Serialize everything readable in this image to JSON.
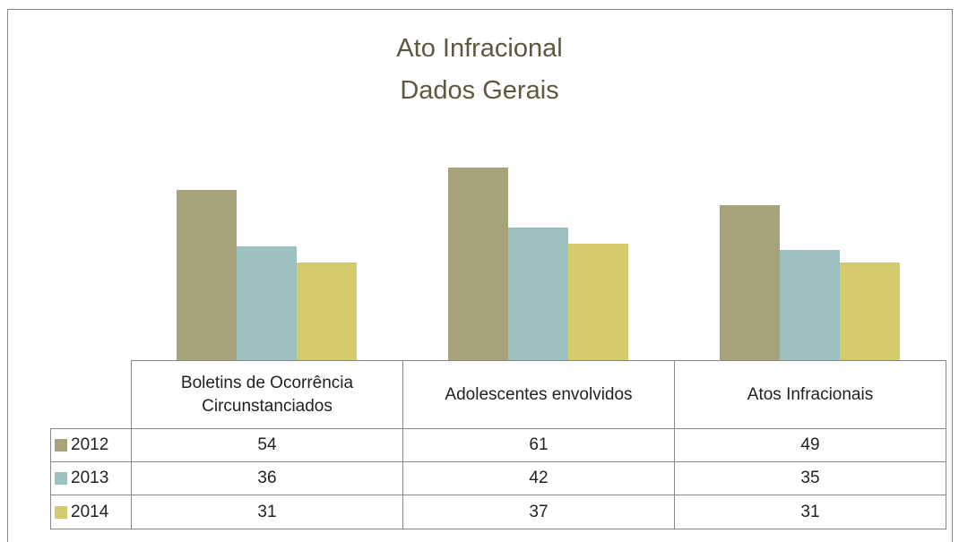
{
  "chart_data": {
    "type": "bar",
    "title": "Ato Infracional",
    "subtitle": "Dados Gerais",
    "categories": [
      "Boletins de Ocorrência Circunstanciados",
      "Adolescentes envolvidos",
      "Atos Infracionais"
    ],
    "series": [
      {
        "name": "2012",
        "color": "#a6a37a",
        "values": [
          54,
          61,
          49
        ]
      },
      {
        "name": "2013",
        "color": "#9dc0c1",
        "values": [
          36,
          42,
          35
        ]
      },
      {
        "name": "2014",
        "color": "#d3cb6d",
        "values": [
          31,
          37,
          31
        ]
      }
    ],
    "data_table": true
  }
}
